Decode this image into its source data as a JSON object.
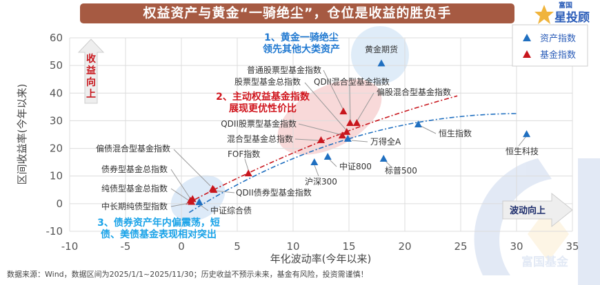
{
  "title": "权益资产与黄金“一骑绝尘”，仓位是收益的胜负手",
  "logo": {
    "top": "富国",
    "bottom": "星投顾"
  },
  "watermark": "富国基金",
  "footnote": "数据来源：Wind，数据区间为2025/1/1~2025/11/30；历史收益不预示未来，基金有风险，投资需谨慎！",
  "colors": {
    "asset": "#1f6fc0",
    "fund": "#c8161d",
    "banner": "#a65a42"
  },
  "chart_data": {
    "type": "scatter",
    "xlabel": "年化波动率(今年以来)",
    "ylabel": "区间收益率(今年以来)",
    "xlim": [
      -10,
      35
    ],
    "ylim": [
      -10,
      60
    ],
    "xticks": [
      "-10",
      "-5",
      "0",
      "5",
      "10",
      "15",
      "20",
      "25",
      "30",
      "35"
    ],
    "yticks": [
      "-10",
      "0",
      "10",
      "20",
      "30",
      "40",
      "50",
      "60"
    ],
    "grid": true,
    "legend_position": "top-right",
    "legend": [
      "资产指数",
      "基金指数"
    ],
    "series": [
      {
        "name": "资产指数",
        "points": [
          {
            "label": "黄金期货",
            "x": 17.9,
            "y": 50.7
          },
          {
            "label": "恒生科技",
            "x": 30.9,
            "y": 25.1
          },
          {
            "label": "恒生指数",
            "x": 21.2,
            "y": 28.6
          },
          {
            "label": "万得全A",
            "x": 14.9,
            "y": 23.4
          },
          {
            "label": "标普500",
            "x": 18.1,
            "y": 16.2
          },
          {
            "label": "中证800",
            "x": 13.1,
            "y": 16.9
          },
          {
            "label": "沪深300",
            "x": 11.9,
            "y": 14.9
          },
          {
            "label": "中证综合债",
            "x": 1.6,
            "y": 0.5
          }
        ]
      },
      {
        "name": "基金指数",
        "points": [
          {
            "label": "普通股票型基金指数",
            "x": 14.5,
            "y": 33.3
          },
          {
            "label": "QDII混合型基金指数",
            "x": 15.1,
            "y": 29.1
          },
          {
            "label": "偏股混合型基金指数",
            "x": 15.7,
            "y": 29.1
          },
          {
            "label": "股票型基金总指数",
            "x": 14.8,
            "y": 25.9
          },
          {
            "label": "QDII股票型基金指数",
            "x": 14.4,
            "y": 24.6
          },
          {
            "label": "混合型基金总指数",
            "x": 12.5,
            "y": 22.9
          },
          {
            "label": "FOF指数",
            "x": 6.0,
            "y": 10.9
          },
          {
            "label": "偏债混合型基金指数",
            "x": 2.8,
            "y": 5.3
          },
          {
            "label": "QDII债券型基金指数",
            "x": 2.9,
            "y": 4.9
          },
          {
            "label": "债券型基金总指数",
            "x": 1.0,
            "y": 1.6
          },
          {
            "label": "纯债型基金总指数",
            "x": 0.8,
            "y": 1.0
          },
          {
            "label": "中长期纯债型指数",
            "x": 0.9,
            "y": 0.6
          }
        ]
      }
    ],
    "trendlines": [
      {
        "series": "资产指数",
        "points": [
          [
            0.7,
            -3.2
          ],
          [
            15,
            23.5
          ],
          [
            30.1,
            32.6
          ]
        ]
      },
      {
        "series": "基金指数",
        "points": [
          [
            0.4,
            -0.2
          ],
          [
            12.5,
            22.5
          ],
          [
            24.7,
            39.0
          ]
        ]
      }
    ],
    "annotations": [
      {
        "lines": [
          "1、黄金一骑绝尘",
          "领先其他大类资产"
        ],
        "color": "#1f78d0"
      },
      {
        "lines": [
          "2、主动权益基金指数",
          "展现更优性价比"
        ],
        "color": "#d0141c"
      },
      {
        "lines": [
          "3、债券资产年内偏震荡，短",
          "债、美债基金表现相对突出"
        ],
        "color": "#1aa3e8"
      }
    ],
    "arrows": {
      "up": "收益向上",
      "right": "波动向上"
    }
  }
}
